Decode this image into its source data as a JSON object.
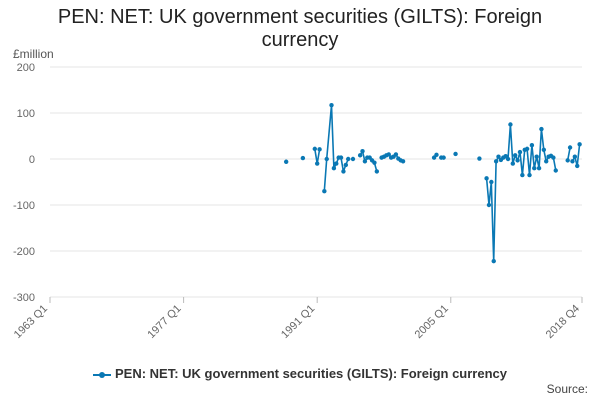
{
  "chart_data": {
    "type": "line",
    "title_line1": "PEN: NET: UK government securities (GILTS): Foreign",
    "title_line2": "currency",
    "unit": "£million",
    "ylim": [
      -300,
      200
    ],
    "yticks": [
      200,
      100,
      0,
      -100,
      -200,
      -300
    ],
    "xlim": [
      1963.0,
      2018.75
    ],
    "xticks": [
      {
        "label": "1963 Q1",
        "value": 1963.0
      },
      {
        "label": "1977 Q1",
        "value": 1977.0
      },
      {
        "label": "1991 Q1",
        "value": 1991.0
      },
      {
        "label": "2005 Q1",
        "value": 2005.0
      },
      {
        "label": "2018 Q4",
        "value": 2018.75
      }
    ],
    "grid": "horizontal",
    "legend_position": "bottom",
    "color": "#0a78b4",
    "series": [
      {
        "name": "PEN: NET: UK government securities (GILTS): Foreign currency",
        "segments": [
          [
            [
              1987.75,
              -6
            ]
          ],
          [
            [
              1989.5,
              2
            ]
          ],
          [
            [
              1990.75,
              22
            ],
            [
              1991.0,
              -10
            ],
            [
              1991.25,
              21
            ]
          ],
          [
            [
              1991.75,
              -70
            ],
            [
              1992.0,
              0
            ],
            [
              1992.5,
              117
            ],
            [
              1992.75,
              -20
            ],
            [
              1993.0,
              -10
            ],
            [
              1993.25,
              3
            ],
            [
              1993.5,
              3
            ],
            [
              1993.75,
              -27
            ],
            [
              1994.0,
              -13
            ],
            [
              1994.25,
              0
            ]
          ],
          [
            [
              1994.75,
              0
            ]
          ],
          [
            [
              1995.5,
              8
            ],
            [
              1995.75,
              17
            ],
            [
              1996.0,
              -5
            ],
            [
              1996.25,
              3
            ],
            [
              1996.5,
              3
            ],
            [
              1996.75,
              -3
            ],
            [
              1997.0,
              -8
            ],
            [
              1997.25,
              -27
            ]
          ],
          [
            [
              1997.75,
              3
            ],
            [
              1998.0,
              5
            ],
            [
              1998.25,
              8
            ],
            [
              1998.5,
              10
            ],
            [
              1998.75,
              3
            ],
            [
              1999.0,
              5
            ],
            [
              1999.25,
              10
            ],
            [
              1999.5,
              1
            ],
            [
              1999.75,
              -3
            ],
            [
              2000.0,
              -5
            ]
          ],
          [
            [
              2003.25,
              3
            ],
            [
              2003.5,
              9
            ]
          ],
          [
            [
              2004.0,
              3
            ],
            [
              2004.25,
              3
            ]
          ],
          [
            [
              2005.5,
              11
            ]
          ],
          [
            [
              2008.0,
              1
            ]
          ],
          [
            [
              2008.75,
              -42
            ],
            [
              2009.0,
              -100
            ],
            [
              2009.25,
              -50
            ],
            [
              2009.5,
              -222
            ],
            [
              2009.75,
              -5
            ],
            [
              2010.0,
              5
            ],
            [
              2010.25,
              -2
            ],
            [
              2010.5,
              3
            ],
            [
              2010.75,
              6
            ],
            [
              2011.0,
              0
            ],
            [
              2011.25,
              75
            ],
            [
              2011.5,
              -10
            ],
            [
              2011.75,
              8
            ],
            [
              2012.0,
              -3
            ],
            [
              2012.25,
              15
            ],
            [
              2012.5,
              -35
            ],
            [
              2012.75,
              20
            ],
            [
              2013.0,
              22
            ],
            [
              2013.25,
              -35
            ],
            [
              2013.5,
              30
            ],
            [
              2013.75,
              -20
            ],
            [
              2014.0,
              5
            ],
            [
              2014.25,
              -20
            ],
            [
              2014.5,
              65
            ],
            [
              2014.75,
              20
            ],
            [
              2015.0,
              -5
            ],
            [
              2015.25,
              5
            ],
            [
              2015.5,
              7
            ],
            [
              2015.75,
              3
            ],
            [
              2016.0,
              -25
            ]
          ],
          [
            [
              2017.25,
              -3
            ],
            [
              2017.5,
              25
            ]
          ],
          [
            [
              2017.75,
              -5
            ],
            [
              2018.0,
              5
            ],
            [
              2018.25,
              -15
            ],
            [
              2018.5,
              32
            ]
          ]
        ]
      }
    ],
    "source_label": "Source:"
  }
}
